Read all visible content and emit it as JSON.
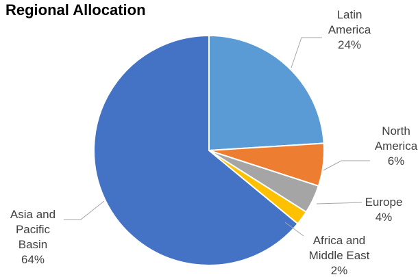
{
  "chart_data": {
    "type": "pie",
    "title": "Regional Allocation",
    "slices": [
      {
        "label": "Latin America",
        "value": 24,
        "value_label": "24%",
        "color": "#5b9bd5"
      },
      {
        "label": "North America",
        "value": 6,
        "value_label": "6%",
        "color": "#ed7d31"
      },
      {
        "label": "Europe",
        "value": 4,
        "value_label": "4%",
        "color": "#a5a5a5"
      },
      {
        "label": "Africa and Middle East",
        "value": 2,
        "value_label": "2%",
        "color": "#ffc000"
      },
      {
        "label": "Asia and Pacific Basin",
        "value": 64,
        "value_label": "64%",
        "color": "#4472c4"
      }
    ],
    "start_angle_deg": 0,
    "direction": "clockwise",
    "legend": "none",
    "data_labels": "outside with leader lines"
  }
}
